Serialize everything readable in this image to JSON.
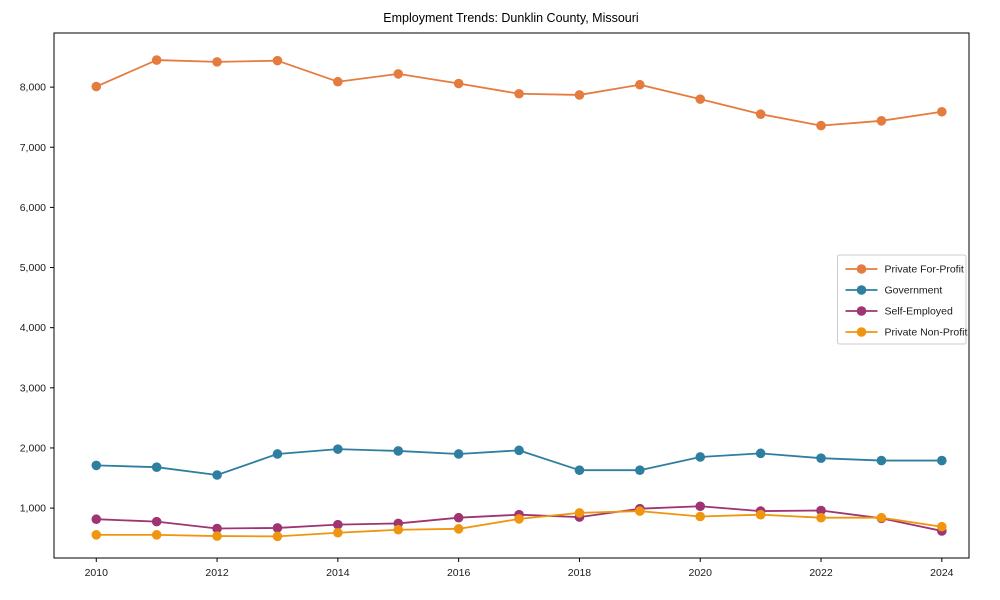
{
  "chart_data": {
    "type": "line",
    "title": "Employment Trends: Dunklin County, Missouri",
    "xlabel": "",
    "ylabel": "",
    "x": [
      2010,
      2011,
      2012,
      2013,
      2014,
      2015,
      2016,
      2017,
      2018,
      2019,
      2020,
      2021,
      2022,
      2023,
      2024
    ],
    "series": [
      {
        "name": "Private For-Profit",
        "color": "#e57c3f",
        "values": [
          8010,
          8450,
          8420,
          8440,
          8090,
          8220,
          8060,
          7890,
          7870,
          8040,
          7800,
          7550,
          7360,
          7440,
          7590
        ]
      },
      {
        "name": "Government",
        "color": "#2e7f9f",
        "values": [
          1710,
          1680,
          1550,
          1900,
          1980,
          1950,
          1900,
          1960,
          1630,
          1630,
          1850,
          1910,
          1830,
          1790,
          1790
        ]
      },
      {
        "name": "Self-Employed",
        "color": "#9e3471",
        "values": [
          815,
          775,
          660,
          670,
          725,
          745,
          840,
          890,
          850,
          990,
          1030,
          950,
          960,
          830,
          620
        ]
      },
      {
        "name": "Private Non-Profit",
        "color": "#f0950f",
        "values": [
          555,
          555,
          535,
          530,
          590,
          640,
          655,
          820,
          920,
          950,
          860,
          890,
          840,
          840,
          690
        ]
      }
    ],
    "xticks": [
      2010,
      2012,
      2014,
      2016,
      2018,
      2020,
      2022,
      2024
    ],
    "xtick_labels": [
      "2010",
      "2012",
      "2014",
      "2016",
      "2018",
      "2020",
      "2022",
      "2024"
    ],
    "yticks": [
      1000,
      2000,
      3000,
      4000,
      5000,
      6000,
      7000,
      8000
    ],
    "ytick_labels": [
      "1,000",
      "2,000",
      "3,000",
      "4,000",
      "5,000",
      "6,000",
      "7,000",
      "8,000"
    ],
    "xlim": [
      2009.3,
      2024.45
    ],
    "ylim": [
      170,
      8900
    ],
    "grid": false,
    "legend_position": "center right",
    "frame_color": "#000000",
    "legend_border_color": "#cccccc",
    "background_color": "#ffffff"
  }
}
